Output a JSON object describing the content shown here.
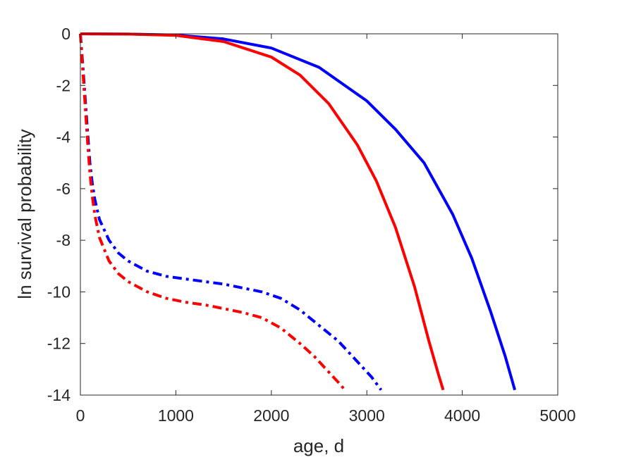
{
  "chart_data": {
    "type": "line",
    "title": "",
    "xlabel": "age, d",
    "ylabel": "ln survival probability",
    "xlim": [
      0,
      5000
    ],
    "ylim": [
      -14,
      0
    ],
    "xticks": [
      0,
      1000,
      2000,
      3000,
      4000,
      5000
    ],
    "yticks": [
      0,
      -2,
      -4,
      -6,
      -8,
      -10,
      -12,
      -14
    ],
    "xtick_labels": [
      "0",
      "1000",
      "2000",
      "3000",
      "4000",
      "5000"
    ],
    "ytick_labels": [
      "0",
      "-2",
      "-4",
      "-6",
      "-8",
      "-10",
      "-12",
      "-14"
    ],
    "grid": false,
    "legend": "none",
    "series": [
      {
        "color": "#0000ff",
        "style": "solid",
        "x": [
          0,
          500,
          1000,
          1500,
          2000,
          2500,
          3000,
          3300,
          3600,
          3900,
          4100,
          4300,
          4450,
          4550
        ],
        "y": [
          0,
          -0.01,
          -0.05,
          -0.2,
          -0.55,
          -1.3,
          -2.6,
          -3.7,
          -5.0,
          -7.0,
          -8.7,
          -10.8,
          -12.5,
          -13.8
        ]
      },
      {
        "color": "#ff0000",
        "style": "solid",
        "x": [
          0,
          500,
          1000,
          1500,
          2000,
          2300,
          2600,
          2900,
          3100,
          3300,
          3500,
          3650,
          3750,
          3800
        ],
        "y": [
          0,
          -0.01,
          -0.06,
          -0.3,
          -0.9,
          -1.6,
          -2.7,
          -4.3,
          -5.7,
          -7.5,
          -9.8,
          -11.9,
          -13.2,
          -13.8
        ]
      },
      {
        "color": "#0000ff",
        "style": "dashdot",
        "x": [
          0,
          25,
          50,
          75,
          100,
          125,
          150,
          200,
          300,
          400,
          500,
          700,
          900,
          1100,
          1300,
          1500,
          1700,
          1900,
          2100,
          2300,
          2500,
          2700,
          2900,
          3050,
          3150
        ],
        "y": [
          0,
          -1.2,
          -2.5,
          -3.8,
          -5.0,
          -5.8,
          -6.4,
          -7.2,
          -8.0,
          -8.5,
          -8.8,
          -9.2,
          -9.4,
          -9.5,
          -9.6,
          -9.7,
          -9.85,
          -10.0,
          -10.25,
          -10.7,
          -11.3,
          -11.9,
          -12.7,
          -13.3,
          -13.8
        ]
      },
      {
        "color": "#ff0000",
        "style": "dashdot",
        "x": [
          0,
          25,
          50,
          75,
          100,
          125,
          150,
          200,
          300,
          400,
          500,
          700,
          900,
          1100,
          1300,
          1500,
          1700,
          1900,
          2100,
          2300,
          2450,
          2600,
          2700,
          2770
        ],
        "y": [
          0,
          -1.4,
          -2.8,
          -4.2,
          -5.4,
          -6.3,
          -7.0,
          -7.9,
          -8.8,
          -9.3,
          -9.6,
          -10.0,
          -10.25,
          -10.4,
          -10.5,
          -10.65,
          -10.8,
          -11.0,
          -11.4,
          -12.0,
          -12.5,
          -13.1,
          -13.5,
          -13.8
        ]
      }
    ]
  }
}
